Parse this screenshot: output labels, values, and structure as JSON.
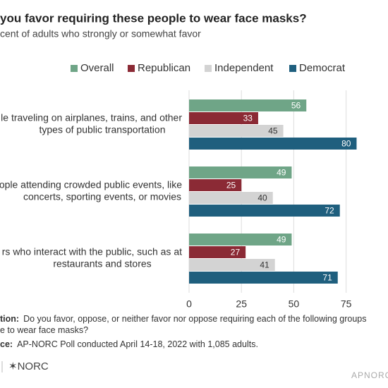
{
  "chart_data": {
    "type": "grouped_hbar",
    "title": "you favor requiring these people to wear face masks?",
    "subtitle": "cent of adults who strongly or somewhat favor",
    "categories": [
      [
        "le traveling on airplanes, trains, and other",
        "types of public transportation"
      ],
      [
        "ople attending crowded public events, like",
        "concerts, sporting events, or movies"
      ],
      [
        "rs who interact with the public, such as at",
        "restaurants and stores"
      ]
    ],
    "series": [
      {
        "name": "Overall",
        "color": "#6fa587",
        "values": [
          56,
          49,
          49
        ]
      },
      {
        "name": "Republican",
        "color": "#8b2a35",
        "values": [
          33,
          25,
          27
        ]
      },
      {
        "name": "Independent",
        "color": "#d3d3d3",
        "values": [
          45,
          40,
          41
        ]
      },
      {
        "name": "Democrat",
        "color": "#1f5f7e",
        "values": [
          80,
          72,
          71
        ]
      }
    ],
    "xlim": [
      0,
      95
    ],
    "xticks": [
      0,
      25,
      50,
      75
    ],
    "grid": true,
    "legend": "top",
    "notes": [
      {
        "label": "tion:",
        "text": "Do you favor, oppose, or neither favor nor oppose requiring each of the following groups"
      },
      {
        "label": "",
        "text": "e to wear face masks?"
      },
      {
        "label": "ce:",
        "text": "AP-NORC Poll conducted April 14-18, 2022 with 1,085 adults."
      }
    ],
    "logo": "✶NORC",
    "brand": "APNORC"
  }
}
